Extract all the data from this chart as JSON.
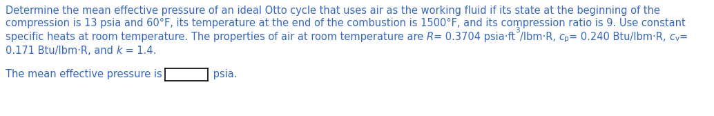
{
  "text_color": "#3366cc",
  "background_color": "#ffffff",
  "font_size": 10.5,
  "line1": "Determine the mean effective pressure of an ideal Otto cycle that uses air as the working fluid if its state at the beginning of the",
  "line2": "compression is 13 psia and 60°F, its temperature at the end of the combustion is 1500°F, and its compression ratio is 9. Use constant",
  "line3_part1": "specific heats at room temperature. The properties of air at room temperature are ",
  "line3_R": "R",
  "line3_eq1": "= 0.3704 psia·ft",
  "line3_sup": "3",
  "line3_eq2": "/lbm·R, ",
  "line3_cp_base": "c",
  "line3_cp_sub": "p",
  "line3_eq3": "= 0.240 Btu/lbm·R, ",
  "line3_cv_base": "c",
  "line3_cv_sub": "v",
  "line3_eq4": "=",
  "line4_start": "0.171 Btu/lbm·R, and ",
  "line4_k": "k",
  "line4_end": " = 1.4.",
  "line5_pre": "The mean effective pressure is",
  "line5_post": "psia.",
  "figwidth": 10.34,
  "figheight": 1.68,
  "dpi": 100
}
